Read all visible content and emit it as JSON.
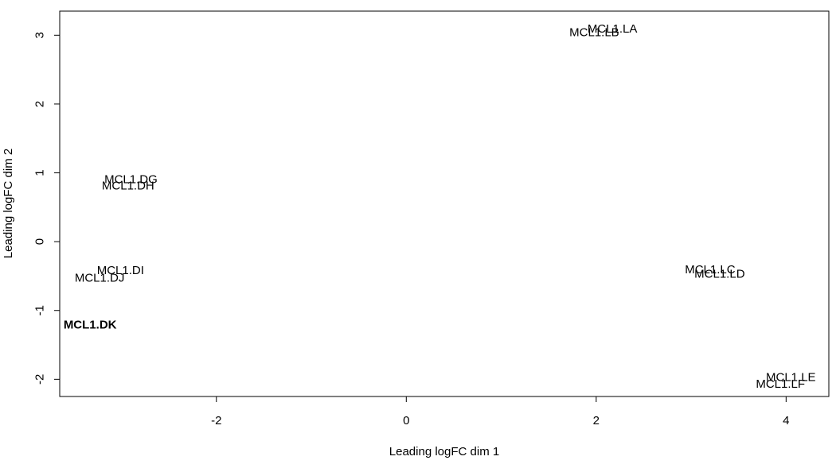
{
  "chart_data": {
    "type": "scatter",
    "title": "",
    "xlabel": "Leading logFC dim 1",
    "ylabel": "Leading logFC dim 2",
    "xlim": [
      -3.65,
      4.45
    ],
    "ylim": [
      -2.25,
      3.35
    ],
    "x_ticks": [
      -2,
      0,
      2,
      4
    ],
    "y_ticks": [
      -2,
      -1,
      0,
      1,
      2,
      3
    ],
    "grid": false,
    "marker": "text-label",
    "points": [
      {
        "label": "MCL1.LA",
        "x": 2.17,
        "y": 3.09
      },
      {
        "label": "MCL1.LB",
        "x": 1.98,
        "y": 3.04
      },
      {
        "label": "MCL1.DG",
        "x": -2.9,
        "y": 0.9
      },
      {
        "label": "MCL1.DH",
        "x": -2.93,
        "y": 0.81
      },
      {
        "label": "MCL1.DI",
        "x": -3.01,
        "y": -0.42
      },
      {
        "label": "MCL1.DJ",
        "x": -3.23,
        "y": -0.53
      },
      {
        "label": "MCL1.DK",
        "x": -3.33,
        "y": -1.21,
        "bold": true
      },
      {
        "label": "MCL1.LC",
        "x": 3.2,
        "y": -0.41
      },
      {
        "label": "MCL1.LD",
        "x": 3.3,
        "y": -0.47
      },
      {
        "label": "MCL1.LE",
        "x": 4.05,
        "y": -1.97
      },
      {
        "label": "MCL1.LF",
        "x": 3.94,
        "y": -2.07
      }
    ]
  }
}
